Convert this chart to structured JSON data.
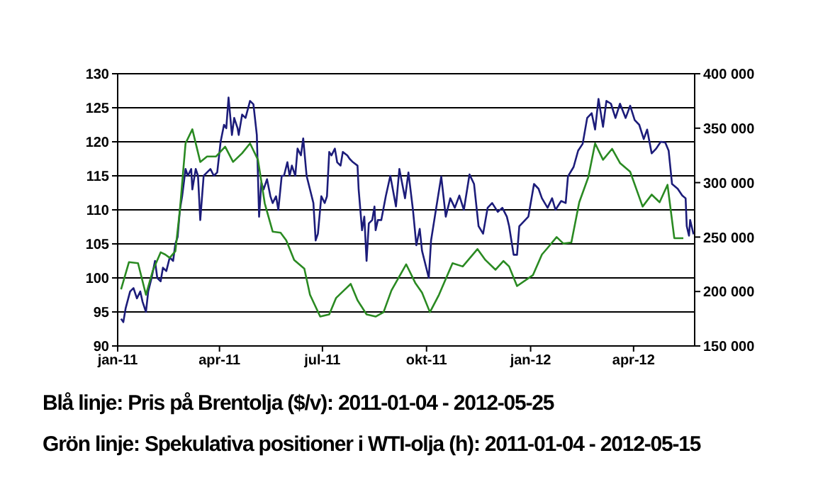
{
  "chart_data": {
    "type": "line",
    "xlim": [
      "2011-01-01",
      "2012-05-25"
    ],
    "xticks": [
      {
        "value": "2011-01-01",
        "label": "jan-11"
      },
      {
        "value": "2011-04-01",
        "label": "apr-11"
      },
      {
        "value": "2011-07-01",
        "label": "jul-11"
      },
      {
        "value": "2011-10-01",
        "label": "okt-11"
      },
      {
        "value": "2012-01-01",
        "label": "jan-12"
      },
      {
        "value": "2012-04-01",
        "label": "apr-12"
      }
    ],
    "ylim": [
      90,
      130
    ],
    "yticks": [
      90,
      95,
      100,
      105,
      110,
      115,
      120,
      125,
      130
    ],
    "y2lim": [
      150000,
      400000
    ],
    "y2ticks": [
      {
        "value": 150000,
        "label": "150 000"
      },
      {
        "value": 200000,
        "label": "200 000"
      },
      {
        "value": 250000,
        "label": "250 000"
      },
      {
        "value": 300000,
        "label": "300 000"
      },
      {
        "value": 350000,
        "label": "350 000"
      },
      {
        "value": 400000,
        "label": "400 000"
      }
    ],
    "grid": "y",
    "series": [
      {
        "color": "#1c1c7a",
        "x": [
          "2011-01-04",
          "2011-01-06",
          "2011-01-08",
          "2011-01-12",
          "2011-01-15",
          "2011-01-18",
          "2011-01-21",
          "2011-01-23",
          "2011-01-26",
          "2011-01-28",
          "2011-01-31",
          "2011-02-03",
          "2011-02-05",
          "2011-02-08",
          "2011-02-10",
          "2011-02-13",
          "2011-02-16",
          "2011-02-19",
          "2011-02-21",
          "2011-02-23",
          "2011-02-25",
          "2011-02-27",
          "2011-03-02",
          "2011-03-04",
          "2011-03-07",
          "2011-03-08",
          "2011-03-11",
          "2011-03-13",
          "2011-03-15",
          "2011-03-18",
          "2011-03-21",
          "2011-03-24",
          "2011-03-27",
          "2011-03-30",
          "2011-04-02",
          "2011-04-05",
          "2011-04-07",
          "2011-04-09",
          "2011-04-12",
          "2011-04-14",
          "2011-04-17",
          "2011-04-18",
          "2011-04-21",
          "2011-04-24",
          "2011-04-28",
          "2011-05-01",
          "2011-05-04",
          "2011-05-06",
          "2011-05-08",
          "2011-05-10",
          "2011-05-13",
          "2011-05-16",
          "2011-05-18",
          "2011-05-21",
          "2011-05-23",
          "2011-05-26",
          "2011-05-28",
          "2011-05-31",
          "2011-06-02",
          "2011-06-04",
          "2011-06-07",
          "2011-06-09",
          "2011-06-12",
          "2011-06-14",
          "2011-06-17",
          "2011-06-20",
          "2011-06-23",
          "2011-06-25",
          "2011-06-27",
          "2011-06-30",
          "2011-07-03",
          "2011-07-05",
          "2011-07-07",
          "2011-07-09",
          "2011-07-12",
          "2011-07-14",
          "2011-07-17",
          "2011-07-19",
          "2011-07-23",
          "2011-07-25",
          "2011-07-28",
          "2011-08-01",
          "2011-08-02",
          "2011-08-05",
          "2011-08-07",
          "2011-08-09",
          "2011-08-11",
          "2011-08-14",
          "2011-08-16",
          "2011-08-17",
          "2011-08-19",
          "2011-08-22",
          "2011-08-26",
          "2011-08-30",
          "2011-09-04",
          "2011-09-07",
          "2011-09-12",
          "2011-09-15",
          "2011-09-19",
          "2011-09-22",
          "2011-09-25",
          "2011-09-27",
          "2011-10-03",
          "2011-10-05",
          "2011-10-09",
          "2011-10-14",
          "2011-10-18",
          "2011-10-22",
          "2011-10-26",
          "2011-10-30",
          "2011-11-03",
          "2011-11-08",
          "2011-11-12",
          "2011-11-16",
          "2011-11-20",
          "2011-11-24",
          "2011-11-28",
          "2011-12-03",
          "2011-12-07",
          "2011-12-11",
          "2011-12-13",
          "2011-12-17",
          "2011-12-20",
          "2011-12-22",
          "2011-12-26",
          "2011-12-30",
          "2012-01-04",
          "2012-01-08",
          "2012-01-11",
          "2012-01-16",
          "2012-01-20",
          "2012-01-23",
          "2012-01-28",
          "2012-02-01",
          "2012-02-03",
          "2012-02-08",
          "2012-02-12",
          "2012-02-16",
          "2012-02-20",
          "2012-02-24",
          "2012-02-27",
          "2012-03-01",
          "2012-03-05",
          "2012-03-08",
          "2012-03-12",
          "2012-03-16",
          "2012-03-20",
          "2012-03-25",
          "2012-03-29",
          "2012-04-02",
          "2012-04-06",
          "2012-04-10",
          "2012-04-13",
          "2012-04-17",
          "2012-04-21",
          "2012-04-25",
          "2012-04-29",
          "2012-05-02",
          "2012-05-05",
          "2012-05-10",
          "2012-05-14",
          "2012-05-17",
          "2012-05-18",
          "2012-05-20",
          "2012-05-21",
          "2012-05-24"
        ],
        "values": [
          94,
          93.5,
          95.5,
          98,
          98.5,
          97,
          98,
          96.5,
          95,
          98,
          100,
          102.5,
          100,
          99.5,
          101.5,
          101,
          103,
          102.5,
          105,
          106,
          110,
          112,
          116,
          115,
          116,
          113,
          116,
          115,
          108.5,
          115,
          115.5,
          116,
          115,
          115.5,
          120,
          122.5,
          122,
          126.5,
          121,
          123.5,
          122,
          121,
          124,
          123.5,
          126,
          125.5,
          121,
          109,
          114,
          113,
          114.5,
          112,
          111,
          112,
          110,
          115,
          115,
          117,
          115,
          116.5,
          115,
          119,
          118,
          120.5,
          115,
          113,
          111,
          105.5,
          106.5,
          112,
          111,
          112,
          118.5,
          118,
          119,
          117,
          116.5,
          118.5,
          118,
          117.5,
          117,
          116.5,
          113,
          107,
          109,
          102.5,
          108,
          108.5,
          110.5,
          107,
          108.5,
          108.5,
          112,
          115,
          110.5,
          116,
          111.7,
          115.5,
          110,
          104.8,
          107.2,
          104,
          100,
          105.5,
          109.7,
          114.9,
          109,
          111.7,
          110.3,
          112.1,
          110,
          115.2,
          113.8,
          107.6,
          106.5,
          110.3,
          111,
          109.7,
          110.3,
          109,
          107.6,
          103.4,
          103.4,
          107.6,
          108.3,
          109,
          113.8,
          113.1,
          111.7,
          110.3,
          111.7,
          110,
          111.3,
          111,
          114.9,
          116.3,
          118.7,
          119.7,
          123.5,
          124.2,
          121.8,
          126.3,
          122.2,
          126,
          125.6,
          123.5,
          125.6,
          123.5,
          125.3,
          123.2,
          122.5,
          120.4,
          121.8,
          118.3,
          119,
          120,
          119.9,
          118.7,
          113.8,
          113.1,
          112.1,
          111.7,
          107.6,
          106.2,
          108.5,
          106.4
        ]
      },
      {
        "color": "#2a8a22",
        "axis": "y2",
        "x": [
          "2011-01-04",
          "2011-01-11",
          "2011-01-19",
          "2011-01-26",
          "2011-02-01",
          "2011-02-08",
          "2011-02-12",
          "2011-02-16",
          "2011-02-21",
          "2011-02-25",
          "2011-03-02",
          "2011-03-08",
          "2011-03-15",
          "2011-03-21",
          "2011-03-29",
          "2011-04-06",
          "2011-04-13",
          "2011-04-21",
          "2011-04-28",
          "2011-05-05",
          "2011-05-11",
          "2011-05-18",
          "2011-05-25",
          "2011-05-30",
          "2011-06-06",
          "2011-06-15",
          "2011-06-20",
          "2011-06-29",
          "2011-07-07",
          "2011-07-13",
          "2011-07-20",
          "2011-07-26",
          "2011-08-01",
          "2011-08-09",
          "2011-08-17",
          "2011-08-24",
          "2011-08-31",
          "2011-09-13",
          "2011-09-21",
          "2011-09-27",
          "2011-10-04",
          "2011-10-12",
          "2011-10-24",
          "2011-11-02",
          "2011-11-15",
          "2011-11-22",
          "2011-12-01",
          "2011-12-08",
          "2011-12-13",
          "2011-12-20",
          "2012-01-03",
          "2012-01-11",
          "2012-01-16",
          "2012-01-24",
          "2012-01-30",
          "2012-02-06",
          "2012-02-13",
          "2012-02-21",
          "2012-02-27",
          "2012-03-05",
          "2012-03-13",
          "2012-03-20",
          "2012-03-29",
          "2012-04-09",
          "2012-04-17",
          "2012-04-24",
          "2012-05-01",
          "2012-05-07",
          "2012-05-15"
        ],
        "values": [
          202000,
          227000,
          226000,
          197000,
          219000,
          236000,
          234000,
          231000,
          237000,
          275000,
          336000,
          349000,
          319000,
          324000,
          324000,
          333000,
          319000,
          327000,
          336000,
          321000,
          281000,
          255000,
          254000,
          247000,
          229000,
          221000,
          197000,
          177000,
          179000,
          194000,
          201000,
          207000,
          192000,
          179000,
          177000,
          181000,
          201000,
          225000,
          208000,
          199000,
          181000,
          197000,
          226000,
          223000,
          239000,
          229000,
          220000,
          228000,
          223000,
          205000,
          215000,
          234000,
          240000,
          250000,
          244000,
          245000,
          282000,
          305000,
          336000,
          321000,
          331000,
          318000,
          310000,
          278000,
          289000,
          282000,
          298000,
          249000,
          249000
        ]
      }
    ],
    "annotations": [
      "Blå linje: Pris på Brentolja ($/v): 2011-01-04 - 2012-05-25",
      "Grön linje: Spekulativa positioner i WTI-olja (h): 2011-01-04 - 2012-05-15"
    ]
  }
}
